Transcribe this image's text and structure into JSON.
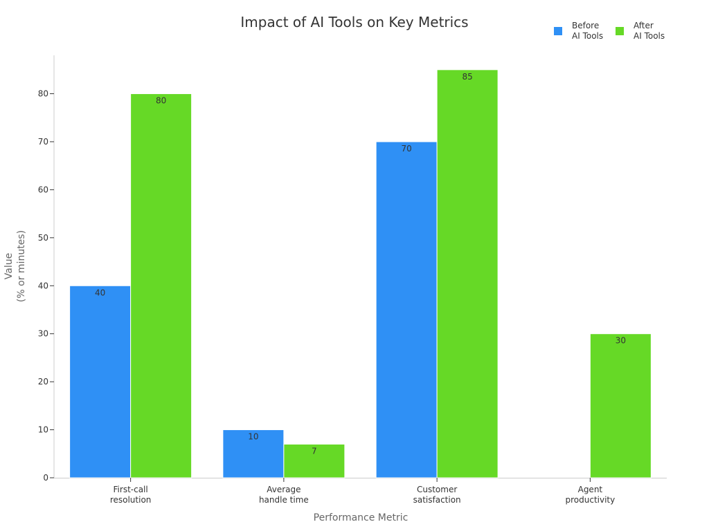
{
  "chart_data": {
    "type": "bar",
    "title": "Impact of AI Tools on Key Metrics",
    "xlabel": "Performance Metric",
    "ylabel": "Value\n(% or minutes)",
    "categories": [
      "First-call\nresolution",
      "Average\nhandle time",
      "Customer\nsatisfaction",
      "Agent\nproductivity"
    ],
    "series": [
      {
        "name": "Before\nAI Tools",
        "color": "#2f90f5",
        "values": [
          40,
          10,
          70,
          null
        ]
      },
      {
        "name": "After\nAI Tools",
        "color": "#66d926",
        "values": [
          80,
          7,
          85,
          30
        ]
      }
    ],
    "yticks": [
      0,
      10,
      20,
      30,
      40,
      50,
      60,
      70,
      80
    ],
    "ylim": [
      0,
      88
    ],
    "grid": false,
    "legend_position": "top-right"
  }
}
